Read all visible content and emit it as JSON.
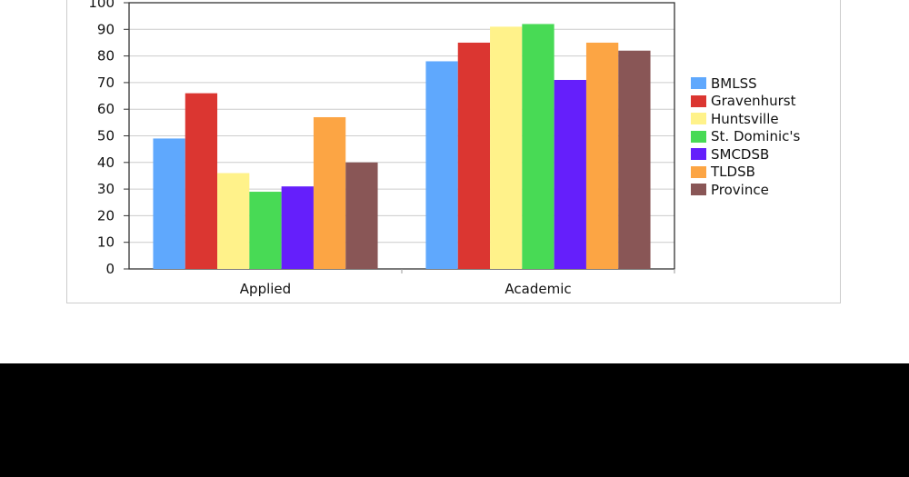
{
  "chart_data": {
    "type": "bar",
    "categories": [
      "Applied",
      "Academic"
    ],
    "ylim": [
      0,
      100
    ],
    "yticks": [
      "0",
      "10",
      "20",
      "30",
      "40",
      "50",
      "60",
      "70",
      "80",
      "90",
      "100"
    ],
    "grid": true,
    "legend_position": "right",
    "series": [
      {
        "name": "BMLSS",
        "color": "#5fa8fd",
        "values": [
          49,
          78
        ]
      },
      {
        "name": "Gravenhurst",
        "color": "#db3631",
        "values": [
          66,
          85
        ]
      },
      {
        "name": "Huntsville",
        "color": "#fff28a",
        "values": [
          36,
          91
        ]
      },
      {
        "name": "St. Dominic's",
        "color": "#48da55",
        "values": [
          29,
          92
        ]
      },
      {
        "name": "SMCDSB",
        "color": "#651ffb",
        "values": [
          31,
          71
        ]
      },
      {
        "name": "TLDSB",
        "color": "#fca544",
        "values": [
          57,
          85
        ]
      },
      {
        "name": "Province",
        "color": "#895656",
        "values": [
          40,
          82
        ]
      }
    ]
  }
}
